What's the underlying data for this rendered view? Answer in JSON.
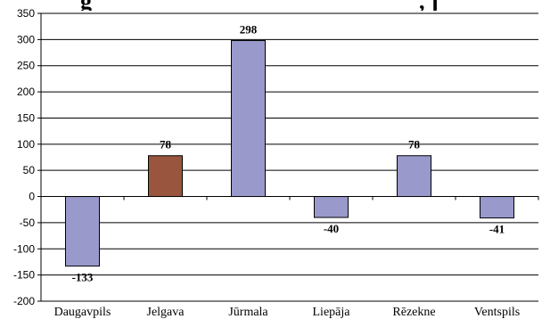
{
  "chart_data": {
    "type": "bar",
    "title_fragment": "…g… …, j…",
    "categories": [
      "Daugavpils",
      "Jelgava",
      "Jūrmala",
      "Liepāja",
      "Rēzekne",
      "Ventspils"
    ],
    "values": [
      -133,
      78,
      298,
      -40,
      78,
      -41
    ],
    "data_labels": [
      "-133",
      "78",
      "298",
      "-40",
      "78",
      "-41"
    ],
    "ylim": [
      -200,
      350
    ],
    "yticks": [
      350,
      300,
      250,
      200,
      150,
      100,
      50,
      0,
      -50,
      -100,
      -150,
      -200
    ],
    "grid": true,
    "colors": {
      "default_bar": "#9999cc",
      "highlight_bar": "#99553d",
      "gridline": "#000000",
      "bar_border": "#000000"
    },
    "highlight_index": 1
  }
}
